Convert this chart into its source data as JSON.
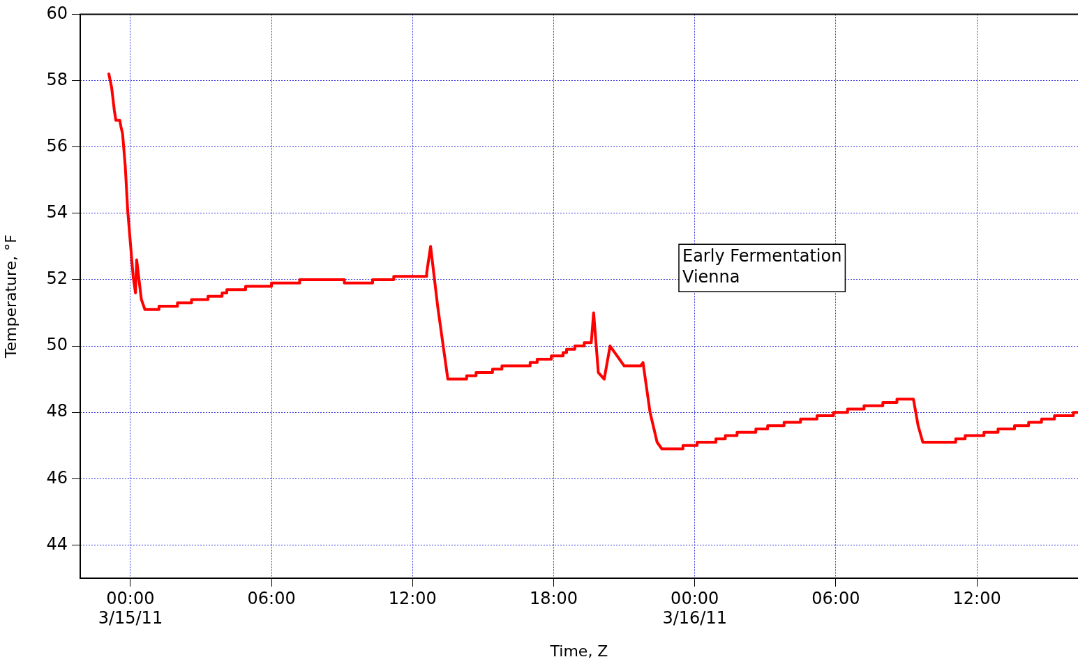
{
  "chart_data": {
    "type": "line",
    "xlabel": "Time, Z",
    "ylabel": "Temperature, °F",
    "annotations": [
      "Early Fermentation\nVienna"
    ],
    "xlim": [
      "--03-14T21:52",
      "--03-16T16:18"
    ],
    "xticks": [
      {
        "value": "--03-15T00:00",
        "label": "00:00\n3/15/11"
      },
      {
        "value": "--03-15T06:00",
        "label": "06:00"
      },
      {
        "value": "--03-15T12:00",
        "label": "12:00"
      },
      {
        "value": "--03-15T18:00",
        "label": "18:00"
      },
      {
        "value": "--03-16T00:00",
        "label": "00:00\n3/16/11"
      },
      {
        "value": "--03-16T06:00",
        "label": "06:00"
      },
      {
        "value": "--03-16T12:00",
        "label": "12:00"
      }
    ],
    "ylim": [
      43,
      60
    ],
    "yticks": [
      44,
      46,
      48,
      50,
      52,
      54,
      56,
      58,
      60
    ],
    "grid": true,
    "legend": false,
    "marker": "none",
    "line_style": "solid",
    "series": [
      {
        "color": "#ff0000",
        "x": [
          "--03-14T23:05",
          "--03-14T23:12",
          "--03-14T23:19",
          "--03-14T23:23",
          "--03-14T23:33",
          "--03-14T23:36",
          "--03-14T23:40",
          "--03-14T23:47",
          "--03-14T23:53",
          "--03-15T00:00",
          "--03-15T00:07",
          "--03-15T00:13",
          "--03-15T00:16",
          "--03-15T00:22",
          "--03-15T00:28",
          "--03-15T00:37",
          "--03-15T01:13",
          "--03-15T01:13",
          "--03-15T02:00",
          "--03-15T02:00",
          "--03-15T02:36",
          "--03-15T02:36",
          "--03-15T03:18",
          "--03-15T03:18",
          "--03-15T03:54",
          "--03-15T03:54",
          "--03-15T04:06",
          "--03-15T04:06",
          "--03-15T04:54",
          "--03-15T04:54",
          "--03-15T06:00",
          "--03-15T06:00",
          "--03-15T07:12",
          "--03-15T07:12",
          "--03-15T09:06",
          "--03-15T09:06",
          "--03-15T10:18",
          "--03-15T10:18",
          "--03-15T11:12",
          "--03-15T11:12",
          "--03-15T12:36",
          "--03-15T12:36",
          "--03-15T12:46",
          "--03-15T13:04",
          "--03-15T13:30",
          "--03-15T14:18",
          "--03-15T14:18",
          "--03-15T14:42",
          "--03-15T14:42",
          "--03-15T15:24",
          "--03-15T15:24",
          "--03-15T15:48",
          "--03-15T15:48",
          "--03-15T17:00",
          "--03-15T17:00",
          "--03-15T17:18",
          "--03-15T17:18",
          "--03-15T17:54",
          "--03-15T17:54",
          "--03-15T18:24",
          "--03-15T18:24",
          "--03-15T18:33",
          "--03-15T18:33",
          "--03-15T18:54",
          "--03-15T18:54",
          "--03-15T19:18",
          "--03-15T19:18",
          "--03-15T19:36",
          "--03-15T19:42",
          "--03-15T19:54",
          "--03-15T20:09",
          "--03-15T20:24",
          "--03-15T20:36",
          "--03-15T20:54",
          "--03-15T21:00",
          "--03-15T21:42",
          "--03-15T21:48",
          "--03-15T22:06",
          "--03-15T22:24",
          "--03-15T22:36",
          "--03-15T23:30",
          "--03-15T23:30",
          "--03-16T00:06",
          "--03-16T00:06",
          "--03-16T00:54",
          "--03-16T00:54",
          "--03-16T01:18",
          "--03-16T01:18",
          "--03-16T01:48",
          "--03-16T01:48",
          "--03-16T02:36",
          "--03-16T02:36",
          "--03-16T03:06",
          "--03-16T03:06",
          "--03-16T03:48",
          "--03-16T03:48",
          "--03-16T04:30",
          "--03-16T04:30",
          "--03-16T05:12",
          "--03-16T05:12",
          "--03-16T05:54",
          "--03-16T05:54",
          "--03-16T06:30",
          "--03-16T06:30",
          "--03-16T07:12",
          "--03-16T07:12",
          "--03-16T08:00",
          "--03-16T08:00",
          "--03-16T08:36",
          "--03-16T08:36",
          "--03-16T09:18",
          "--03-16T09:30",
          "--03-16T09:42",
          "--03-16T11:06",
          "--03-16T11:06",
          "--03-16T11:30",
          "--03-16T11:30",
          "--03-16T12:18",
          "--03-16T12:18",
          "--03-16T12:54",
          "--03-16T12:54",
          "--03-16T13:36",
          "--03-16T13:36",
          "--03-16T14:12",
          "--03-16T14:12",
          "--03-16T14:45",
          "--03-16T14:45",
          "--03-16T15:18",
          "--03-16T15:18",
          "--03-16T16:06",
          "--03-16T16:06",
          "--03-16T16:18"
        ],
        "values": [
          58.2,
          57.8,
          57.1,
          56.8,
          56.8,
          56.6,
          56.4,
          55.4,
          54.1,
          53.1,
          52.1,
          51.6,
          52.6,
          52.0,
          51.4,
          51.1,
          51.1,
          51.2,
          51.2,
          51.3,
          51.3,
          51.4,
          51.4,
          51.5,
          51.5,
          51.6,
          51.6,
          51.7,
          51.7,
          51.8,
          51.8,
          51.9,
          51.9,
          52.0,
          52.0,
          51.9,
          51.9,
          52.0,
          52.0,
          52.1,
          52.1,
          52.2,
          53.0,
          51.2,
          49.0,
          49.0,
          49.1,
          49.1,
          49.2,
          49.2,
          49.3,
          49.3,
          49.4,
          49.4,
          49.5,
          49.5,
          49.6,
          49.6,
          49.7,
          49.7,
          49.8,
          49.8,
          49.9,
          49.9,
          50.0,
          50.0,
          50.1,
          50.1,
          51.0,
          49.2,
          49.0,
          50.0,
          49.8,
          49.5,
          49.4,
          49.4,
          49.5,
          48.0,
          47.1,
          46.9,
          46.9,
          47.0,
          47.0,
          47.1,
          47.1,
          47.2,
          47.2,
          47.3,
          47.3,
          47.4,
          47.4,
          47.5,
          47.5,
          47.6,
          47.6,
          47.7,
          47.7,
          47.8,
          47.8,
          47.9,
          47.9,
          48.0,
          48.0,
          48.1,
          48.1,
          48.2,
          48.2,
          48.3,
          48.3,
          48.4,
          48.4,
          47.6,
          47.1,
          47.1,
          47.2,
          47.2,
          47.3,
          47.3,
          47.4,
          47.4,
          47.5,
          47.5,
          47.6,
          47.6,
          47.7,
          47.7,
          47.8,
          47.8,
          47.9,
          47.9,
          48.0,
          48.0
        ]
      }
    ]
  }
}
